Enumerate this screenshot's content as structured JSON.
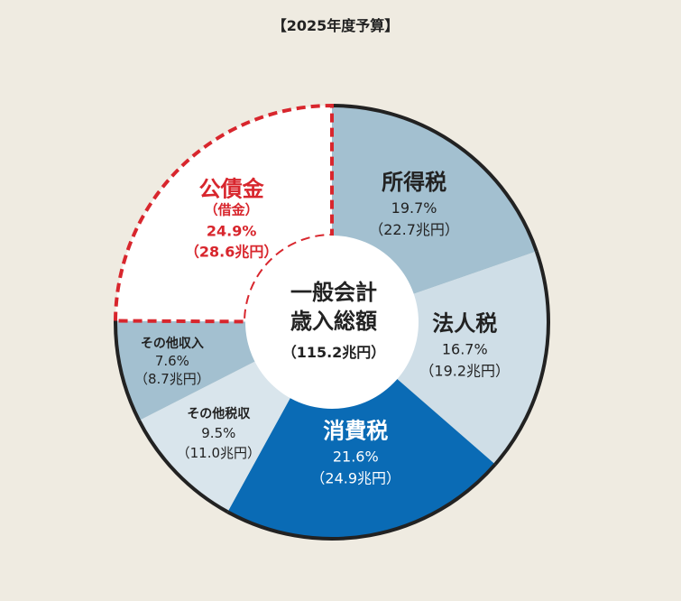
{
  "chart_data": {
    "type": "pie",
    "title": "【2025年度予算】",
    "total_label": {
      "line1": "一般会計",
      "line2": "歳入総額",
      "line3": "（115.2兆円）"
    },
    "unit": "兆円",
    "slices": [
      {
        "label": "所得税",
        "percent": 19.7,
        "value": 22.7,
        "percent_text": "19.7%",
        "value_text": "（22.7兆円）",
        "color": "#a3c0d0",
        "text_color": "#222222"
      },
      {
        "label": "法人税",
        "percent": 16.7,
        "value": 19.2,
        "percent_text": "16.7%",
        "value_text": "（19.2兆円）",
        "color": "#cfdee7",
        "text_color": "#222222"
      },
      {
        "label": "消費税",
        "percent": 21.6,
        "value": 24.9,
        "percent_text": "21.6%",
        "value_text": "（24.9兆円）",
        "color": "#0a6bb5",
        "text_color": "#ffffff"
      },
      {
        "label": "その他税収",
        "percent": 9.5,
        "value": 11.0,
        "percent_text": "9.5%",
        "value_text": "（11.0兆円）",
        "color": "#d9e5ec",
        "text_color": "#222222"
      },
      {
        "label": "その他収入",
        "percent": 7.6,
        "value": 8.7,
        "percent_text": "7.6%",
        "value_text": "（8.7兆円）",
        "color": "#a3c0d0",
        "text_color": "#222222"
      },
      {
        "label": "公債金",
        "sublabel": "（借金）",
        "percent": 24.9,
        "value": 28.6,
        "percent_text": "24.9%",
        "value_text": "（28.6兆円）",
        "color": "#ffffff",
        "text_color": "#d8262d",
        "border": "dashed"
      }
    ],
    "colors": {
      "outline": "#222222",
      "debt_outline": "#d8262d",
      "center": "#ffffff",
      "background": "#efebe1"
    }
  }
}
